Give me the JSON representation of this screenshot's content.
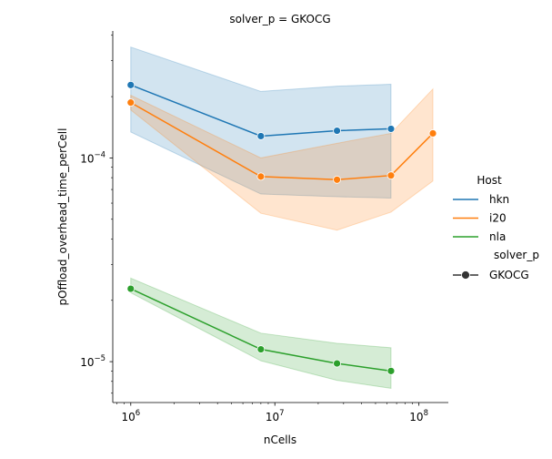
{
  "chart_data": {
    "type": "line",
    "title": "solver_p = GKOCG",
    "xlabel": "nCells",
    "ylabel": "pOffload_overhead_time_perCell",
    "xscale": "log",
    "yscale": "log",
    "xlim": [
      750000,
      160000000
    ],
    "ylim": [
      6.3e-06,
      0.00042
    ],
    "xticks": [
      {
        "value": 1000000,
        "base": "10",
        "exp": "6"
      },
      {
        "value": 10000000,
        "base": "10",
        "exp": "7"
      },
      {
        "value": 100000000,
        "base": "10",
        "exp": "8"
      }
    ],
    "yticks": [
      {
        "value": 1e-05,
        "base": "10",
        "exp": "−5"
      },
      {
        "value": 0.0001,
        "base": "10",
        "exp": "−4"
      }
    ],
    "grid": false,
    "legend": {
      "placement": "right",
      "hue_title": "Host",
      "style_title": "solver_p",
      "style_entry": "GKOCG"
    },
    "series": [
      {
        "name": "hkn",
        "color": "#1f77b4",
        "x": [
          1000000,
          8000000,
          27000000,
          64000000
        ],
        "y": [
          0.000228,
          0.000128,
          0.000136,
          0.000139
        ],
        "ci_low": [
          0.000134,
          6.65e-05,
          6.45e-05,
          6.35e-05
        ],
        "ci_high": [
          0.00035,
          0.000212,
          0.000225,
          0.00023
        ]
      },
      {
        "name": "i20",
        "color": "#ff7f0e",
        "x": [
          1000000,
          8000000,
          27000000,
          64000000,
          125000000
        ],
        "y": [
          0.000187,
          8.1e-05,
          7.82e-05,
          8.2e-05,
          0.000132
        ],
        "ci_low": [
          0.000172,
          5.35e-05,
          4.42e-05,
          5.42e-05,
          7.7e-05
        ],
        "ci_high": [
          0.000203,
          0.0001,
          0.000118,
          0.000132,
          0.000218
        ]
      },
      {
        "name": "nla",
        "color": "#2ca02c",
        "x": [
          1000000,
          8000000,
          27000000,
          64000000
        ],
        "y": [
          2.28e-05,
          1.15e-05,
          9.8e-06,
          9e-06
        ],
        "ci_low": [
          2.18e-05,
          1.01e-05,
          8.1e-06,
          7.4e-06
        ],
        "ci_high": [
          2.57e-05,
          1.38e-05,
          1.23e-05,
          1.17e-05
        ]
      }
    ]
  }
}
